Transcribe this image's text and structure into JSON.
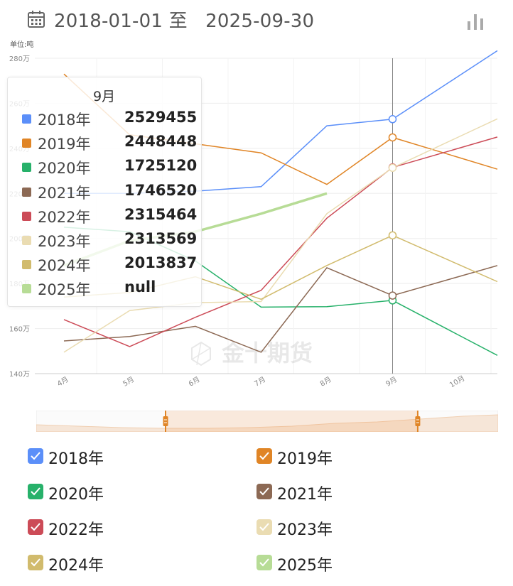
{
  "header": {
    "date_range": "2018-01-01 至   2025-09-30",
    "calendar_icon": "calendar-icon",
    "chart_type_icon": "bar-chart-icon"
  },
  "watermark": "金十期货",
  "chart_data": {
    "type": "line",
    "unit_label": "单位:吨",
    "categories": [
      "4月",
      "5月",
      "6月",
      "7月",
      "8月",
      "9月",
      "10月"
    ],
    "y_ticks": [
      "140万",
      "160万",
      "180万",
      "200万",
      "220万",
      "240万",
      "260万",
      "280万"
    ],
    "ylim": [
      1400000,
      2800000
    ],
    "grid": true,
    "series": [
      {
        "name": "2018年",
        "color": "#5b8ff9",
        "values": [
          2200000,
          2200000,
          2210000,
          2230000,
          2500000,
          2529455,
          2720000
        ]
      },
      {
        "name": "2019年",
        "color": "#e08526",
        "values": [
          2730000,
          2460000,
          2420000,
          2380000,
          2240000,
          2448448,
          2360000
        ]
      },
      {
        "name": "2020年",
        "color": "#27b16a",
        "values": [
          2050000,
          2030000,
          1900000,
          1695000,
          1697000,
          1725120,
          1572000
        ]
      },
      {
        "name": "2021年",
        "color": "#8c6954",
        "values": [
          1545000,
          1565000,
          1610000,
          1495000,
          1870000,
          1746520,
          1830000
        ]
      },
      {
        "name": "2022年",
        "color": "#cc4b57",
        "values": [
          1640000,
          1520000,
          1650000,
          1770000,
          2090000,
          2315464,
          2400000
        ]
      },
      {
        "name": "2023年",
        "color": "#eadcb2",
        "values": [
          1495000,
          1680000,
          1715000,
          1720000,
          2110000,
          2313569,
          2450000
        ]
      },
      {
        "name": "2024年",
        "color": "#d1bb6d",
        "values": [
          1740000,
          1760000,
          1830000,
          1730000,
          1880000,
          2013837,
          1885000
        ]
      },
      {
        "name": "2025年",
        "color": "#b7dc96",
        "values": [
          1880000,
          1990000,
          2030000,
          2110000,
          2200000,
          null,
          null
        ]
      }
    ],
    "highlight_category": "9月"
  },
  "tooltip": {
    "title": "9月",
    "rows": [
      {
        "name": "2018年",
        "value": "2529455",
        "color": "#5b8ff9"
      },
      {
        "name": "2019年",
        "value": "2448448",
        "color": "#e08526"
      },
      {
        "name": "2020年",
        "value": "1725120",
        "color": "#27b16a"
      },
      {
        "name": "2021年",
        "value": "1746520",
        "color": "#8c6954"
      },
      {
        "name": "2022年",
        "value": "2315464",
        "color": "#cc4b57"
      },
      {
        "name": "2023年",
        "value": "2313569",
        "color": "#eadcb2"
      },
      {
        "name": "2024年",
        "value": "2013837",
        "color": "#d1bb6d"
      },
      {
        "name": "2025年",
        "value": "null",
        "color": "#b7dc96"
      }
    ]
  },
  "data_zoom": {
    "start_fraction": 0.28,
    "end_fraction": 0.826,
    "accent": "#e08526"
  },
  "legend": {
    "items": [
      {
        "label": "2018年",
        "color": "#5b8ff9",
        "checked": true
      },
      {
        "label": "2019年",
        "color": "#e08526",
        "checked": true
      },
      {
        "label": "2020年",
        "color": "#27b16a",
        "checked": true
      },
      {
        "label": "2021年",
        "color": "#8c6954",
        "checked": true
      },
      {
        "label": "2022年",
        "color": "#cc4b57",
        "checked": true
      },
      {
        "label": "2023年",
        "color": "#eadcb2",
        "checked": true
      },
      {
        "label": "2024年",
        "color": "#d1bb6d",
        "checked": true
      },
      {
        "label": "2025年",
        "color": "#b7dc96",
        "checked": true
      }
    ]
  }
}
